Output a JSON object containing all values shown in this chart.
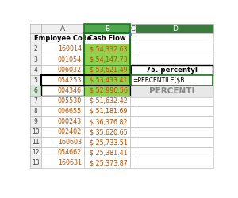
{
  "rows": [
    {
      "row": 1,
      "a": "Employee Code",
      "b": "Cash Flow",
      "header": true
    },
    {
      "row": 2,
      "a": "160014",
      "b": "$ 54,332.63",
      "highlight": true
    },
    {
      "row": 3,
      "a": "001054",
      "b": "$ 54,147.73",
      "highlight": true
    },
    {
      "row": 4,
      "a": "006032",
      "b": "$ 53,621.49",
      "highlight": true
    },
    {
      "row": 5,
      "a": "054253",
      "b": "$ 53,433.41",
      "highlight": true
    },
    {
      "row": 6,
      "a": "004346",
      "b": "$ 52,990.56",
      "highlight": true
    },
    {
      "row": 7,
      "a": "005530",
      "b": "$ 51,632.42",
      "highlight": false
    },
    {
      "row": 8,
      "a": "006655",
      "b": "$ 51,181.69",
      "highlight": false
    },
    {
      "row": 9,
      "a": "000243",
      "b": "$ 36,376.82",
      "highlight": false
    },
    {
      "row": 10,
      "a": "002402",
      "b": "$ 35,620.65",
      "highlight": false
    },
    {
      "row": 11,
      "a": "160603",
      "b": "$ 25,733.51",
      "highlight": false
    },
    {
      "row": 12,
      "a": "054662",
      "b": "$ 25,381.41",
      "highlight": false
    },
    {
      "row": 13,
      "a": "160631",
      "b": "$ 25,373.87",
      "highlight": false
    }
  ],
  "highlight_color": "#92d050",
  "grid_color": "#c0c0c0",
  "row_num_bg": "#efefef",
  "col_header_bg": "#efefef",
  "b_col_selected_border": "#1a7a1a",
  "col_b_header_bg": "#4ea64e",
  "d_header_bg": "#3d7a3d",
  "autocomplete_bg": "#e8e8e8",
  "autocomplete_text": "#888888",
  "text_orange": "#c05000",
  "text_black": "#000000",
  "text_green": "#007000"
}
